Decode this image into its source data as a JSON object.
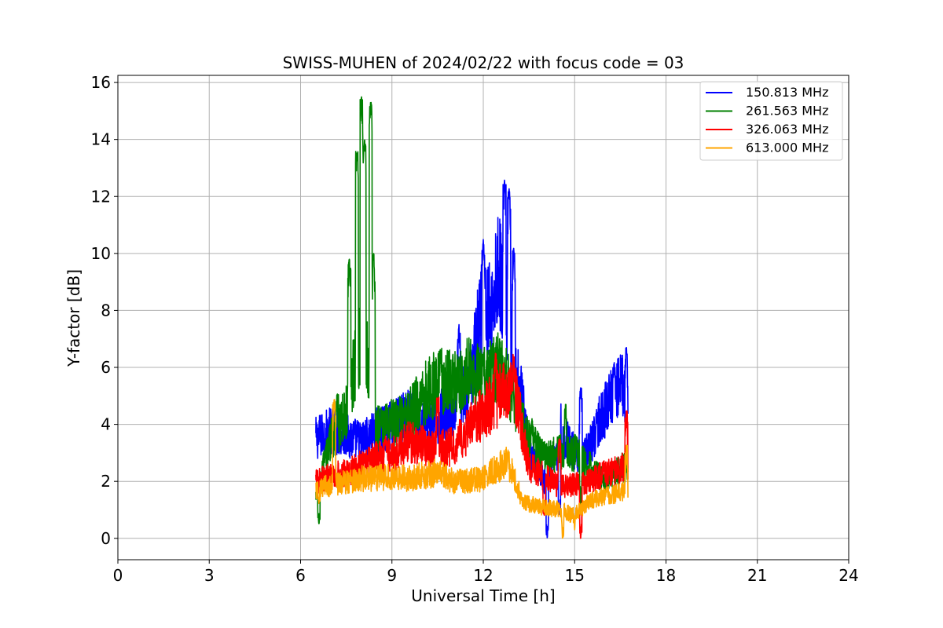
{
  "chart_data": {
    "type": "line",
    "title": "SWISS-MUHEN of 2024/02/22 with focus code = 03",
    "xlabel": "Universal Time [h]",
    "ylabel": "Y-factor [dB]",
    "xlim": [
      0,
      24
    ],
    "ylim": [
      -0.75,
      16.25
    ],
    "xticks": [
      0,
      3,
      6,
      9,
      12,
      15,
      18,
      21,
      24
    ],
    "yticks": [
      0,
      2,
      4,
      6,
      8,
      10,
      12,
      14,
      16
    ],
    "grid": true,
    "legend_position": "top-right",
    "series": [
      {
        "name": "150.813 MHz",
        "color": "#0000ff",
        "x": [
          6.5,
          7.0,
          7.5,
          8.0,
          8.5,
          9.0,
          9.5,
          10.0,
          10.5,
          11.0,
          11.5,
          12.0,
          12.25,
          12.5,
          12.75,
          13.0,
          13.25,
          13.5,
          13.75,
          14.0,
          14.25,
          14.5,
          14.75,
          15.0,
          15.25,
          15.5,
          15.75,
          16.0,
          16.25,
          16.5,
          16.75
        ],
        "y": [
          3.5,
          3.8,
          3.6,
          3.4,
          3.7,
          4.0,
          4.3,
          4.0,
          4.2,
          4.6,
          5.2,
          8.5,
          7.8,
          9.5,
          8.0,
          6.0,
          5.0,
          3.0,
          2.5,
          2.0,
          2.5,
          3.0,
          3.5,
          3.0,
          2.8,
          3.2,
          4.0,
          4.5,
          5.0,
          5.5,
          4.8
        ],
        "peaks": [
          [
            12.0,
            10.5
          ],
          [
            12.7,
            12.6
          ],
          [
            12.85,
            12.3
          ],
          [
            13.0,
            10.2
          ],
          [
            11.2,
            7.5
          ],
          [
            16.3,
            6.2
          ],
          [
            16.7,
            6.7
          ],
          [
            14.5,
            5.0
          ],
          [
            15.2,
            5.3
          ],
          [
            8.5,
            4.6
          ]
        ],
        "dips": [
          [
            14.1,
            0.0
          ],
          [
            14.5,
            0.8
          ]
        ]
      },
      {
        "name": "261.563 MHz",
        "color": "#008000",
        "x": [
          6.5,
          7.0,
          7.25,
          7.5,
          7.75,
          8.0,
          8.25,
          8.5,
          9.0,
          9.5,
          10.0,
          10.5,
          11.0,
          11.5,
          12.0,
          12.5,
          13.0,
          13.5,
          14.0,
          14.5,
          15.0,
          15.5,
          16.0,
          16.5,
          16.75
        ],
        "y": [
          1.5,
          3.5,
          3.8,
          4.5,
          6.0,
          7.0,
          6.0,
          3.8,
          4.0,
          4.2,
          5.0,
          5.5,
          5.4,
          5.8,
          5.5,
          6.0,
          5.0,
          3.5,
          2.8,
          3.0,
          3.0,
          2.5,
          2.0,
          2.5,
          2.5
        ],
        "peaks": [
          [
            7.6,
            9.8
          ],
          [
            7.85,
            13.6
          ],
          [
            8.0,
            15.5
          ],
          [
            8.1,
            14.0
          ],
          [
            8.3,
            15.3
          ],
          [
            8.4,
            10.0
          ],
          [
            7.2,
            5.1
          ],
          [
            10.6,
            6.6
          ],
          [
            12.0,
            6.3
          ],
          [
            13.6,
            4.2
          ],
          [
            14.7,
            4.7
          ]
        ],
        "dips": [
          [
            6.6,
            0.5
          ],
          [
            15.2,
            1.2
          ]
        ]
      },
      {
        "name": "326.063 MHz",
        "color": "#ff0000",
        "x": [
          6.5,
          7.0,
          7.5,
          8.0,
          8.5,
          9.0,
          9.5,
          10.0,
          10.5,
          11.0,
          11.5,
          12.0,
          12.5,
          13.0,
          13.25,
          13.5,
          14.0,
          14.5,
          15.0,
          15.5,
          16.0,
          16.5,
          16.75
        ],
        "y": [
          2.0,
          2.2,
          2.3,
          2.6,
          2.8,
          2.9,
          3.4,
          3.3,
          3.1,
          3.2,
          3.8,
          4.4,
          5.0,
          5.5,
          4.0,
          2.5,
          2.2,
          1.8,
          1.9,
          2.0,
          2.3,
          2.4,
          2.6
        ],
        "peaks": [
          [
            8.8,
            3.6
          ],
          [
            10.5,
            5.0
          ],
          [
            12.4,
            6.5
          ],
          [
            13.0,
            6.0
          ],
          [
            14.5,
            3.5
          ],
          [
            16.7,
            4.5
          ]
        ],
        "dips": [
          [
            15.2,
            0.0
          ],
          [
            14.0,
            0.8
          ]
        ]
      },
      {
        "name": "613.000 MHz",
        "color": "#ffa500",
        "x": [
          6.5,
          7.0,
          7.5,
          8.0,
          8.5,
          9.0,
          9.5,
          10.0,
          10.5,
          11.0,
          11.5,
          12.0,
          12.5,
          12.75,
          13.0,
          13.25,
          13.5,
          14.0,
          14.5,
          15.0,
          15.5,
          16.0,
          16.5,
          16.75
        ],
        "y": [
          1.7,
          1.9,
          2.0,
          2.1,
          2.1,
          2.2,
          2.1,
          2.2,
          2.3,
          2.0,
          2.0,
          2.1,
          2.5,
          2.7,
          2.2,
          1.4,
          1.2,
          1.1,
          1.0,
          0.8,
          1.3,
          1.5,
          1.6,
          1.8
        ],
        "peaks": [
          [
            7.1,
            4.9
          ],
          [
            12.8,
            3.0
          ],
          [
            16.7,
            3.3
          ]
        ],
        "dips": [
          [
            6.6,
            1.2
          ],
          [
            14.6,
            0.0
          ],
          [
            15.0,
            0.3
          ]
        ]
      }
    ]
  }
}
